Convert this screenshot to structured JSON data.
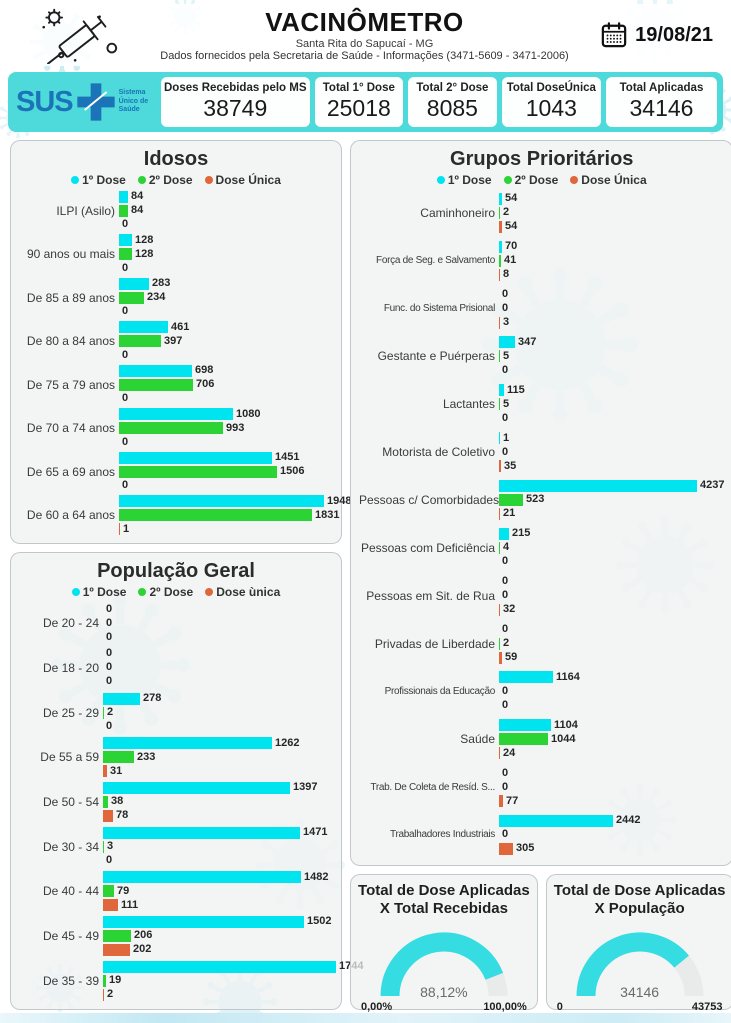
{
  "header": {
    "title": "VACINÔMETRO",
    "subtitle": "Santa Rita do Sapucaí - MG",
    "info": "Dados fornecidos pela Secretaria de Saúde - Informações (3471-5609 - 3471-2006)",
    "date": "19/08/21"
  },
  "stats": {
    "sus": {
      "name": "SUS",
      "tagline": "Sistema Único de Saúde"
    },
    "boxes": [
      {
        "label": "Doses Recebidas pelo MS",
        "value": "38749"
      },
      {
        "label": "Total 1° Dose",
        "value": "25018"
      },
      {
        "label": "Total 2° Dose",
        "value": "8085"
      },
      {
        "label": "Total DoseÚnica",
        "value": "1043"
      },
      {
        "label": "Total Aplicadas",
        "value": "34146"
      }
    ]
  },
  "colors": {
    "dose_1": "#00e4f0",
    "dose_2": "#2bd334",
    "dose_unica": "#df673b",
    "band": "#4ed9da",
    "gauge_fill": "#35dce2",
    "gauge_track": "#e9ebeb",
    "sus_blue": "#1b74b8"
  },
  "chart_data": [
    {
      "id": "idosos",
      "type": "bar",
      "title": "Idosos",
      "legend": [
        "1º Dose",
        "2º Dose",
        "Dose Única"
      ],
      "legend_position": "top",
      "grid": false,
      "categories": [
        "ILPI (Asilo)",
        "90 anos ou mais",
        "De 85 a 89 anos",
        "De 80 a 84 anos",
        "De 75 a 79 anos",
        "De 70 a 74 anos",
        "De 65 a 69 anos",
        "De 60 a 64 anos"
      ],
      "series": [
        {
          "name": "1º Dose",
          "values": [
            84,
            128,
            283,
            461,
            698,
            1080,
            1451,
            1948
          ]
        },
        {
          "name": "2º Dose",
          "values": [
            84,
            128,
            234,
            397,
            706,
            993,
            1506,
            1831
          ]
        },
        {
          "name": "Dose Única",
          "values": [
            0,
            0,
            0,
            0,
            0,
            0,
            0,
            1
          ]
        }
      ],
      "xlim": [
        0,
        1948
      ]
    },
    {
      "id": "populacao-geral",
      "type": "bar",
      "title": "População Geral",
      "legend": [
        "1º Dose",
        "2º Dose",
        "Dose ùnica"
      ],
      "legend_position": "top",
      "grid": false,
      "categories": [
        "De 20 - 24",
        "De 18 - 20",
        "De 25 - 29",
        "De 55 a 59",
        "De 50 - 54",
        "De 30 - 34",
        "De 40 - 44",
        "De 45 - 49",
        "De 35 - 39"
      ],
      "series": [
        {
          "name": "1º Dose",
          "values": [
            0,
            0,
            278,
            1262,
            1397,
            1471,
            1482,
            1502,
            1744
          ]
        },
        {
          "name": "2º Dose",
          "values": [
            0,
            0,
            2,
            233,
            38,
            3,
            79,
            206,
            19
          ]
        },
        {
          "name": "Dose ùnica",
          "values": [
            0,
            0,
            0,
            31,
            78,
            0,
            111,
            202,
            2
          ]
        }
      ],
      "xlim": [
        0,
        1744
      ]
    },
    {
      "id": "grupos-prioritarios",
      "type": "bar",
      "title": "Grupos Prioritários",
      "legend": [
        "1º Dose",
        "2º Dose",
        "Dose Única"
      ],
      "legend_position": "top",
      "grid": false,
      "categories": [
        "Caminhoneiro",
        "Força de Seg. e Salvamento",
        "Func. do Sistema Prisional",
        "Gestante e Puérperas",
        "Lactantes",
        "Motorista de Coletivo",
        "Pessoas c/ Comorbidades",
        "Pessoas com Deficiência",
        "Pessoas em Sit. de Rua",
        "Privadas de Liberdade",
        "Profissionais da Educação",
        "Saúde",
        "Trab. De Coleta de Resíd. S...",
        "Trabalhadores Industriais"
      ],
      "series": [
        {
          "name": "1º Dose",
          "values": [
            54,
            70,
            0,
            347,
            115,
            1,
            4237,
            215,
            0,
            0,
            1164,
            1104,
            0,
            2442
          ]
        },
        {
          "name": "2º Dose",
          "values": [
            2,
            41,
            0,
            5,
            5,
            0,
            523,
            4,
            0,
            2,
            0,
            1044,
            0,
            0
          ]
        },
        {
          "name": "Dose Única",
          "values": [
            54,
            8,
            3,
            0,
            0,
            35,
            21,
            0,
            32,
            59,
            0,
            24,
            77,
            305
          ]
        }
      ],
      "xlim": [
        0,
        4237
      ]
    },
    {
      "id": "gauge-doses-recebidas",
      "type": "gauge",
      "title": "Total de Dose Aplicadas X Total Recebidas",
      "value": 88.12,
      "display": "88,12%",
      "min": 0,
      "max": 100,
      "min_label": "0,00%",
      "max_label": "100,00%"
    },
    {
      "id": "gauge-populacao",
      "type": "gauge",
      "title": "Total de Dose Aplicadas X População",
      "value": 34146,
      "display": "34146",
      "min": 0,
      "max": 43753,
      "min_label": "0",
      "max_label": "43753"
    }
  ]
}
